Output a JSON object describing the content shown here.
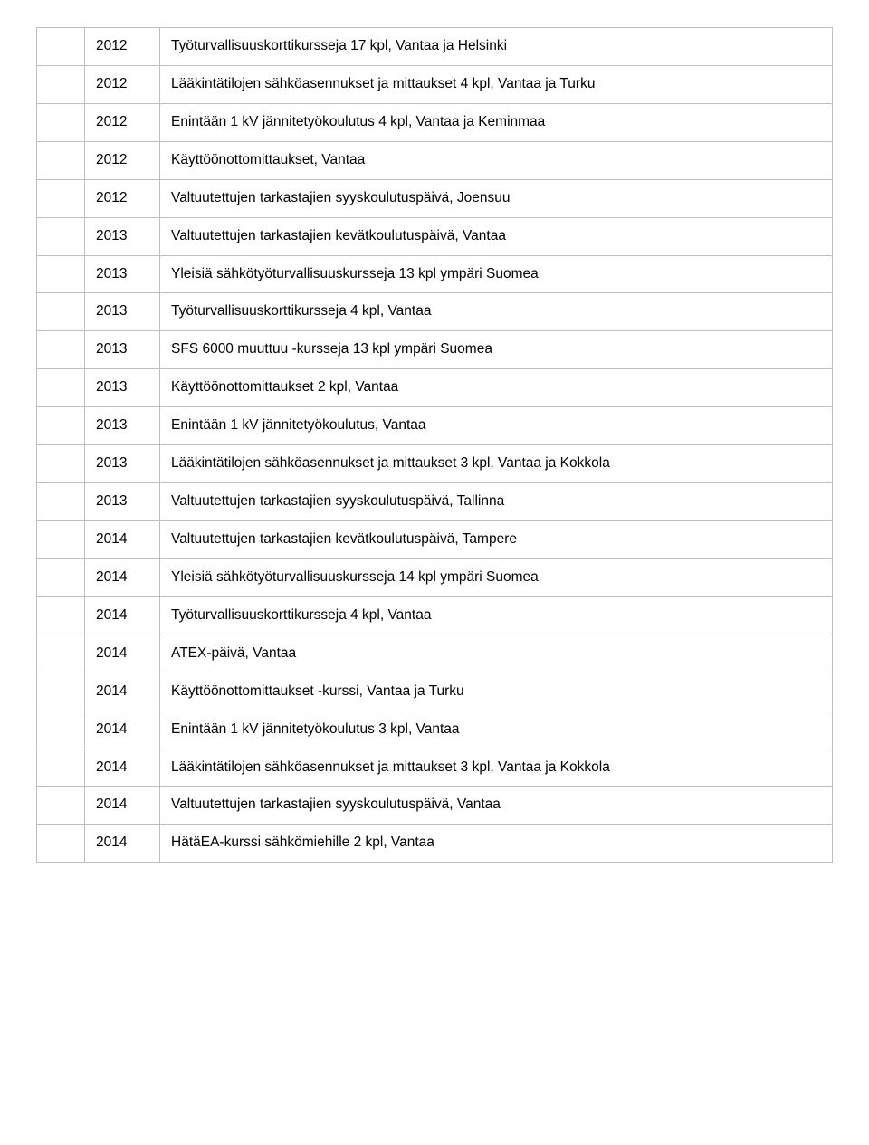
{
  "table": {
    "border_color": "#bfbfbf",
    "background_color": "#ffffff",
    "text_color": "#000000",
    "font_size_pt": 12,
    "rows": [
      {
        "year": "2012",
        "desc": "Työturvallisuuskorttikursseja 17 kpl, Vantaa ja Helsinki"
      },
      {
        "year": "2012",
        "desc": "Lääkintätilojen sähköasennukset ja mittaukset 4 kpl, Vantaa ja Turku"
      },
      {
        "year": "2012",
        "desc": "Enintään 1 kV jännitetyökoulutus 4 kpl, Vantaa ja Keminmaa"
      },
      {
        "year": "2012",
        "desc": "Käyttöönottomittaukset, Vantaa"
      },
      {
        "year": "2012",
        "desc": "Valtuutettujen tarkastajien syyskoulutuspäivä, Joensuu"
      },
      {
        "year": "2013",
        "desc": "Valtuutettujen tarkastajien kevätkoulutuspäivä, Vantaa"
      },
      {
        "year": "2013",
        "desc": "Yleisiä sähkötyöturvallisuuskursseja 13 kpl ympäri Suomea"
      },
      {
        "year": "2013",
        "desc": "Työturvallisuuskorttikursseja 4 kpl, Vantaa"
      },
      {
        "year": "2013",
        "desc": "SFS 6000 muuttuu -kursseja 13 kpl ympäri Suomea"
      },
      {
        "year": "2013",
        "desc": "Käyttöönottomittaukset 2 kpl, Vantaa"
      },
      {
        "year": "2013",
        "desc": "Enintään 1 kV jännitetyökoulutus, Vantaa"
      },
      {
        "year": "2013",
        "desc": "Lääkintätilojen sähköasennukset ja mittaukset 3 kpl, Vantaa ja Kokkola"
      },
      {
        "year": "2013",
        "desc": "Valtuutettujen tarkastajien syyskoulutuspäivä, Tallinna"
      },
      {
        "year": "2014",
        "desc": "Valtuutettujen tarkastajien kevätkoulutuspäivä, Tampere"
      },
      {
        "year": "2014",
        "desc": "Yleisiä sähkötyöturvallisuuskursseja 14 kpl ympäri Suomea"
      },
      {
        "year": "2014",
        "desc": "Työturvallisuuskorttikursseja 4 kpl, Vantaa"
      },
      {
        "year": "2014",
        "desc": "ATEX-päivä, Vantaa"
      },
      {
        "year": "2014",
        "desc": "Käyttöönottomittaukset -kurssi, Vantaa ja Turku"
      },
      {
        "year": "2014",
        "desc": "Enintään 1 kV jännitetyökoulutus 3 kpl, Vantaa"
      },
      {
        "year": "2014",
        "desc": "Lääkintätilojen sähköasennukset ja mittaukset 3 kpl, Vantaa ja Kokkola"
      },
      {
        "year": "2014",
        "desc": "Valtuutettujen tarkastajien syyskoulutuspäivä, Vantaa"
      },
      {
        "year": "2014",
        "desc": "HätäEA-kurssi sähkömiehille 2 kpl, Vantaa"
      }
    ]
  }
}
